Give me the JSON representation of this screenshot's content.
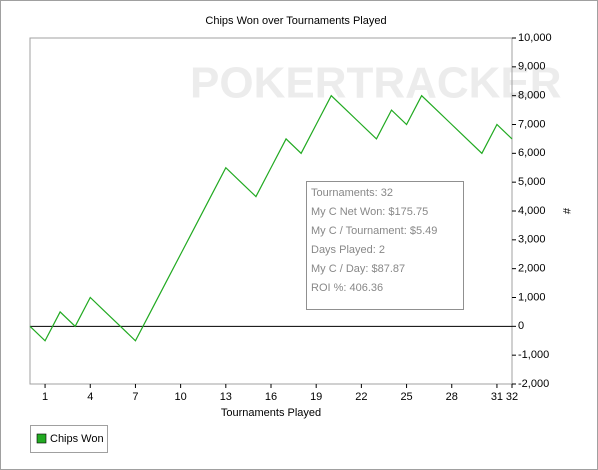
{
  "chart_data": {
    "type": "line",
    "title": "Chips Won over Tournaments Played",
    "xlabel": "Tournaments Played",
    "ylabel": "#",
    "watermark": "POKERTRACKER",
    "x": [
      0,
      1,
      2,
      3,
      4,
      5,
      6,
      7,
      8,
      9,
      10,
      11,
      12,
      13,
      14,
      15,
      16,
      17,
      18,
      19,
      20,
      21,
      22,
      23,
      24,
      25,
      26,
      27,
      28,
      29,
      30,
      31,
      32
    ],
    "series": [
      {
        "name": "Chips Won",
        "color": "#22aa22",
        "values": [
          0,
          -500,
          500,
          0,
          1000,
          500,
          0,
          -500,
          500,
          1500,
          2500,
          3500,
          4500,
          5500,
          5000,
          4500,
          5500,
          6500,
          6000,
          7000,
          8000,
          7500,
          7000,
          6500,
          7500,
          7000,
          8000,
          7500,
          7000,
          6500,
          6000,
          7000,
          6500
        ]
      }
    ],
    "xlim": [
      0,
      32
    ],
    "xticks": [
      1,
      4,
      7,
      10,
      13,
      16,
      19,
      22,
      25,
      28,
      31,
      32
    ],
    "ylim": [
      -2000,
      10000
    ],
    "yticks": [
      {
        "value": -2000,
        "label": "-2,000"
      },
      {
        "value": -1000,
        "label": "-1,000"
      },
      0,
      {
        "value": 1000,
        "label": "1,000"
      },
      {
        "value": 2000,
        "label": "2,000"
      },
      {
        "value": 3000,
        "label": "3,000"
      },
      {
        "value": 4000,
        "label": "4,000"
      },
      {
        "value": 5000,
        "label": "5,000"
      },
      {
        "value": 6000,
        "label": "6,000"
      },
      {
        "value": 7000,
        "label": "7,000"
      },
      {
        "value": 8000,
        "label": "8,000"
      },
      {
        "value": 9000,
        "label": "9,000"
      },
      {
        "value": 10000,
        "label": "10,000"
      }
    ],
    "grid": false,
    "legend": "bottom-left",
    "annotations": [
      "Tournaments: 32",
      "My C Net Won: $175.75",
      "My C / Tournament: $5.49",
      "Days Played: 2",
      "My C / Day: $87.87",
      "ROI %: 406.36"
    ]
  }
}
